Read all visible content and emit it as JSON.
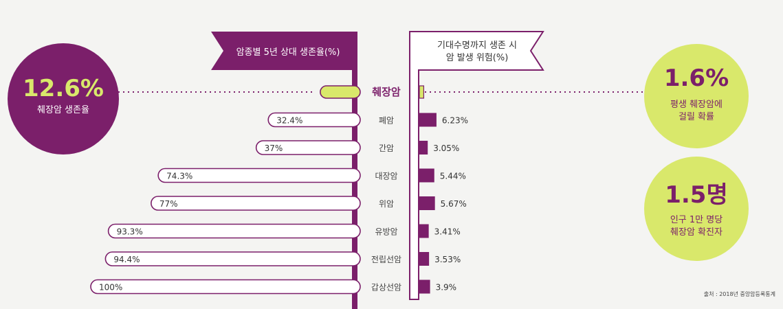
{
  "left_header": "암종별 5년 상대 생존율(%)",
  "right_header": [
    "기대수명까지 생존 시",
    "암 발생 위험(%)"
  ],
  "left_stat": {
    "value": "12.6%",
    "label": "췌장암 생존율"
  },
  "right_stats": [
    {
      "value": "1.6%",
      "label_lines": [
        "평생 췌장암에",
        "걸릴 확률"
      ]
    },
    {
      "value": "1.5명",
      "label_lines": [
        "인구 1만 명당",
        "췌장암 확진자"
      ]
    }
  ],
  "source": "출처 : 2018년 중앙암등록통계",
  "colors": {
    "purple": "#7b1f6a",
    "lime": "#d9e86b",
    "background": "#f4f4f2"
  },
  "chart_data": {
    "type": "bar",
    "categories": [
      "췌장암",
      "폐암",
      "간암",
      "대장암",
      "위암",
      "유방암",
      "전립선암",
      "갑상선암"
    ],
    "series": [
      {
        "name": "암종별 5년 상대 생존율(%)",
        "values": [
          12.6,
          32.4,
          37,
          74.3,
          77,
          93.3,
          94.4,
          100
        ],
        "labels": [
          "",
          "32.4%",
          "37%",
          "74.3%",
          "77%",
          "93.3%",
          "94.4%",
          "100%"
        ]
      },
      {
        "name": "기대수명까지 생존 시 암 발생 위험(%)",
        "values": [
          1.6,
          6.23,
          3.05,
          5.44,
          5.67,
          3.41,
          3.53,
          3.9
        ],
        "labels": [
          "",
          "6.23%",
          "3.05%",
          "5.44%",
          "5.67%",
          "3.41%",
          "3.53%",
          "3.9%"
        ]
      }
    ],
    "highlight_category": "췌장암"
  }
}
